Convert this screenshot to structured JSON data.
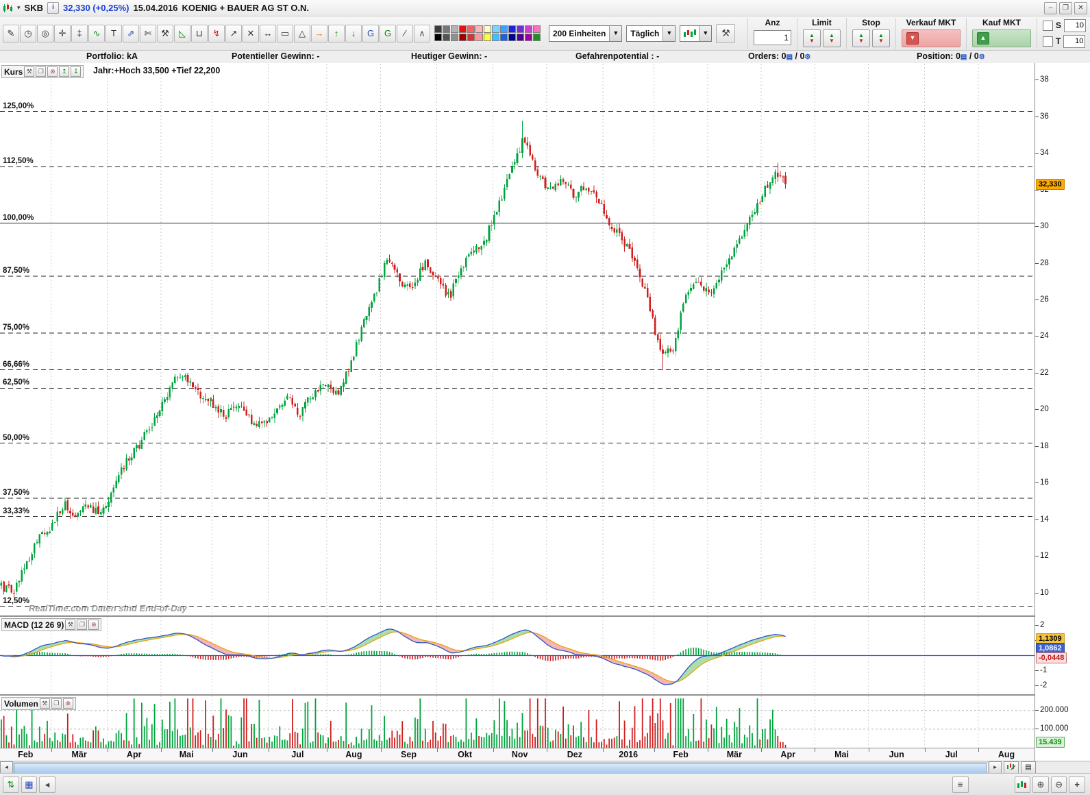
{
  "window": {
    "symbol": "SKB",
    "price_display": "32,330 (+0,25%)",
    "date": "15.04.2016",
    "instrument": "KOENIG + BAUER AG ST O.N.",
    "controls": {
      "minimize": "–",
      "maximize": "❐",
      "close": "✕"
    },
    "dropdown_arrow": "▾",
    "info_glyph": "i"
  },
  "toolbar": {
    "units_value": "200 Einheiten",
    "period_value": "Täglich",
    "tools": [
      {
        "name": "draw-pencil-icon",
        "glyph": "✎"
      },
      {
        "name": "alarm-icon",
        "glyph": "◷"
      },
      {
        "name": "zoom-tool-icon",
        "glyph": "◎"
      },
      {
        "name": "crosshair-icon",
        "glyph": "✛"
      },
      {
        "name": "measure-icon",
        "glyph": "‡"
      },
      {
        "name": "trend-channel-icon",
        "glyph": "∿",
        "color": "#0a8a0a"
      },
      {
        "name": "text-tool-icon",
        "glyph": "T"
      },
      {
        "name": "diagonal-arrows-icon",
        "glyph": "⇗",
        "color": "#2a48c0"
      },
      {
        "name": "scissors-icon",
        "glyph": "✄"
      },
      {
        "name": "tools-icon",
        "glyph": "⚒"
      },
      {
        "name": "fan-icon",
        "glyph": "◺",
        "color": "#0a8a0a"
      },
      {
        "name": "trash-icon",
        "glyph": "⊔"
      },
      {
        "name": "retracement-icon",
        "glyph": "↯",
        "color": "#c02020"
      },
      {
        "name": "trendline-icon",
        "glyph": "↗"
      },
      {
        "name": "erase-line-icon",
        "glyph": "✕"
      },
      {
        "name": "horizontal-line-icon",
        "glyph": "↔"
      },
      {
        "name": "rectangle-tool-icon",
        "glyph": "▭"
      },
      {
        "name": "triangle-tool-icon",
        "glyph": "△"
      },
      {
        "name": "forward-arrow-icon",
        "glyph": "→",
        "color": "#e07000"
      },
      {
        "name": "arrow-up-icon",
        "glyph": "↑",
        "color": "#0a8a0a"
      },
      {
        "name": "arrow-down-icon",
        "glyph": "↓",
        "color": "#c02020"
      },
      {
        "name": "gd-blue-icon",
        "glyph": "G",
        "color": "#2a48c0"
      },
      {
        "name": "gd-green-icon",
        "glyph": "G",
        "color": "#0a8a0a"
      },
      {
        "name": "slash-tool-icon",
        "glyph": "∕"
      },
      {
        "name": "elliott-icon",
        "glyph": "∧",
        "color": "#555"
      }
    ],
    "palette_row1": [
      "#3c3c3c",
      "#787878",
      "#b4b4b4",
      "#e31212",
      "#f56060",
      "#fbb6b6",
      "#fdfdc8",
      "#7fd4ff",
      "#3fa0ff",
      "#2020dd",
      "#7030d0",
      "#d040d0",
      "#ff70c0"
    ],
    "palette_row2": [
      "#000000",
      "#545454",
      "#909090",
      "#a00000",
      "#d33434",
      "#f89a9a",
      "#ffff40",
      "#40c0ff",
      "#2060e0",
      "#000090",
      "#500090",
      "#a000a0",
      "#209020"
    ],
    "trade": {
      "anz_label": "Anz",
      "anz_value": "1",
      "limit_label": "Limit",
      "stop_label": "Stop",
      "sell_label": "Verkauf MKT",
      "buy_label": "Kauf MKT",
      "s_label": "S",
      "s_value": "10",
      "t_label": "T",
      "t_value": "10"
    }
  },
  "info_row": {
    "portfolio_label": "Portfolio:",
    "portfolio_value": "kA",
    "pot_gewinn_label": "Potentieller Gewinn:",
    "pot_gewinn_value": "-",
    "heut_gewinn_label": "Heutiger Gewinn:",
    "heut_gewinn_value": "-",
    "gefahr_label": "Gefahrenpotential :",
    "gefahr_value": "-",
    "orders_label": "Orders:",
    "orders_value": "0",
    "orders_value2": "0",
    "position_label": "Position:",
    "position_value": "0",
    "position_value2": "0"
  },
  "price_panel": {
    "title": "Kurs",
    "year_stats": "Jahr:+Hoch 33,500 +Tief 22,200",
    "watermark": "RealTime.com   Daten sind End-of-Day",
    "current_price": "32,330",
    "right_axis": [
      38,
      36,
      34,
      32,
      30,
      28,
      26,
      24,
      22,
      20,
      18,
      16,
      14,
      12,
      10
    ],
    "percent_lines": [
      {
        "label": "125,00%",
        "price": 36.3
      },
      {
        "label": "112,50%",
        "price": 33.3
      },
      {
        "label": "100,00%",
        "price": 30.2,
        "solid": true
      },
      {
        "label": "87,50%",
        "price": 27.3
      },
      {
        "label": "75,00%",
        "price": 24.2
      },
      {
        "label": "66,66%",
        "price": 22.2
      },
      {
        "label": "62,50%",
        "price": 21.2
      },
      {
        "label": "50,00%",
        "price": 18.2
      },
      {
        "label": "37,50%",
        "price": 15.2
      },
      {
        "label": "33,33%",
        "price": 14.2
      },
      {
        "label": "12,50%",
        "price": 9.3
      }
    ]
  },
  "macd_panel": {
    "title": "MACD (12 26 9)",
    "axis_labels": [
      "2",
      "1",
      "-1",
      "-2"
    ],
    "axis_values": [
      2,
      1,
      -1,
      -2
    ],
    "signal_value": "1,1309",
    "macd_value": "1,0862",
    "hist_value": "-0,0448"
  },
  "volume_panel": {
    "title": "Volumen",
    "axis_labels": [
      "200.000",
      "100.000"
    ],
    "axis_values": [
      200000,
      100000
    ],
    "last_value": "15.439"
  },
  "x_axis": {
    "months": [
      {
        "label": "Feb",
        "days": 20
      },
      {
        "label": "Mär",
        "days": 22
      },
      {
        "label": "Apr",
        "days": 21
      },
      {
        "label": "Mai",
        "days": 20
      },
      {
        "label": "Jun",
        "days": 22
      },
      {
        "label": "Jul",
        "days": 23
      },
      {
        "label": "Aug",
        "days": 21
      },
      {
        "label": "Sep",
        "days": 22
      },
      {
        "label": "Okt",
        "days": 22
      },
      {
        "label": "Nov",
        "days": 21
      },
      {
        "label": "Dez",
        "days": 22
      },
      {
        "label": "2016",
        "days": 20
      },
      {
        "label": "Feb",
        "days": 21
      },
      {
        "label": "Mär",
        "days": 21
      },
      {
        "label": "Apr",
        "days": 21
      },
      {
        "label": "Mai",
        "days": 21
      },
      {
        "label": "Jun",
        "days": 22
      },
      {
        "label": "Jul",
        "days": 21
      },
      {
        "label": "Aug",
        "days": 22
      }
    ]
  },
  "chart_data": {
    "type": "candlestick",
    "title": "KOENIG + BAUER AG ST O.N.",
    "period": "Täglich",
    "units_shown": 200,
    "last_close": 32.33,
    "change_percent": 0.25,
    "year_high": 33.5,
    "year_low": 22.2,
    "period_high": 35.8,
    "price_axis_range": [
      8.8,
      38.9
    ],
    "candle_days": 308,
    "weekly_closes": [
      10.4,
      10.1,
      11.6,
      13.2,
      13.6,
      14.9,
      14.3,
      14.7,
      14.5,
      15.6,
      17.2,
      18.0,
      19.2,
      20.3,
      21.9,
      21.6,
      20.7,
      20.4,
      19.7,
      20.3,
      19.5,
      19.1,
      19.9,
      20.6,
      19.8,
      20.9,
      21.4,
      20.9,
      22.3,
      24.6,
      26.2,
      28.3,
      27.1,
      26.4,
      28.1,
      27.3,
      26.1,
      27.9,
      28.7,
      29.5,
      31.3,
      33.2,
      34.9,
      33.1,
      31.9,
      32.7,
      31.8,
      32.3,
      31.3,
      30.1,
      29.2,
      28.1,
      25.8,
      23.0,
      23.4,
      26.3,
      26.9,
      26.4,
      27.6,
      28.9,
      30.2,
      31.6,
      32.9,
      32.4
    ],
    "macd": {
      "fast": 12,
      "slow": 26,
      "signal": 9,
      "macd_value": 1.0862,
      "signal_value": 1.1309,
      "hist_value": -0.0448,
      "axis_range": [
        -2.6,
        2.6
      ]
    },
    "volume": {
      "axis_max": 280000,
      "last_volume": 15439,
      "gridlines": [
        100000,
        200000
      ]
    }
  },
  "colors": {
    "up": "#00a33c",
    "down": "#cf1f1f",
    "macd_line": "#2f55c8",
    "signal_line": "#e8a50f",
    "fill_pos": "rgba(84,190,96,0.5)",
    "fill_neg": "rgba(238,120,120,0.55)",
    "zero_line": "#3a5bc7",
    "current_price_bg": "#ffaa00"
  },
  "bottom": {
    "menu_glyph": "≡",
    "zoom_in_glyph": "⊕",
    "zoom_out_glyph": "⊖",
    "add_glyph": "+"
  }
}
